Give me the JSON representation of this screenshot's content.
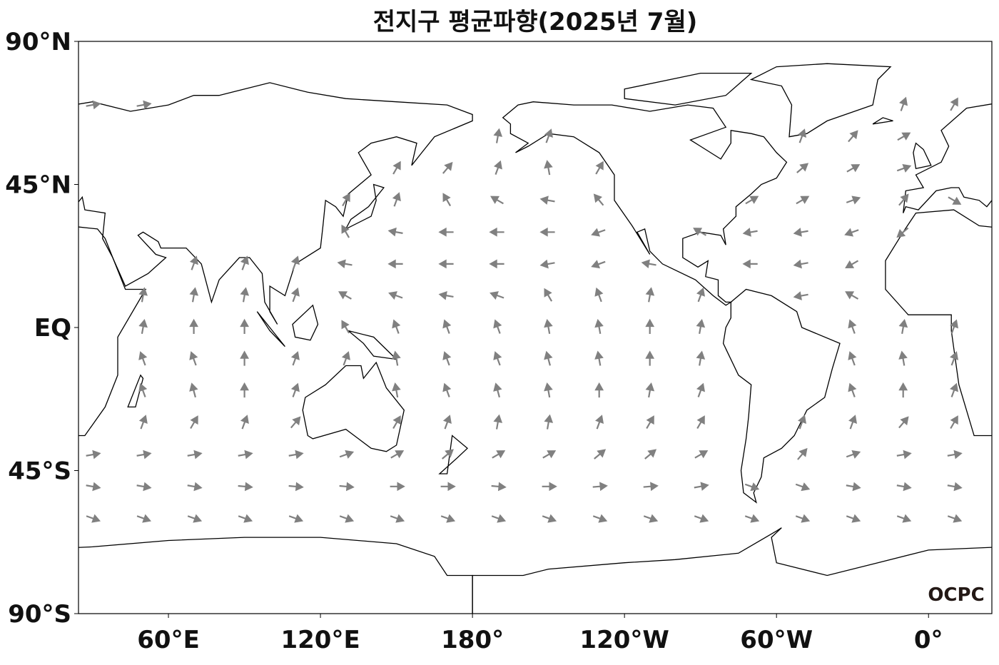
{
  "title": "전지구 평균파향(2025년 7월)",
  "logo": "OCPC",
  "map": {
    "lon_range": [
      24.5,
      385
    ],
    "lat_range": [
      -90,
      90
    ],
    "lat_ticks": [
      {
        "value": 90,
        "label": "90°N"
      },
      {
        "value": 45,
        "label": "45°N"
      },
      {
        "value": 0,
        "label": "EQ"
      },
      {
        "value": -45,
        "label": "45°S"
      },
      {
        "value": -90,
        "label": "90°S"
      }
    ],
    "lon_ticks": [
      {
        "value": 60,
        "label": "60°E"
      },
      {
        "value": 120,
        "label": "120°E"
      },
      {
        "value": 180,
        "label": "180°"
      },
      {
        "value": 240,
        "label": "120°W"
      },
      {
        "value": 300,
        "label": "60°W"
      },
      {
        "value": 360,
        "label": "0°"
      }
    ]
  },
  "wave_direction": {
    "color": "#808080",
    "lats": [
      70,
      60,
      50,
      40,
      30,
      20,
      10,
      0,
      -10,
      -20,
      -30,
      -40,
      -50,
      -60
    ],
    "lons": [
      30,
      50,
      70,
      90,
      110,
      130,
      150,
      170,
      190,
      210,
      230,
      250,
      270,
      290,
      310,
      330,
      350,
      370
    ],
    "directions": [
      [
        80,
        80,
        null,
        null,
        null,
        null,
        null,
        null,
        null,
        null,
        null,
        null,
        null,
        null,
        null,
        null,
        20,
        30
      ],
      [
        null,
        null,
        null,
        null,
        null,
        null,
        null,
        null,
        10,
        20,
        null,
        null,
        null,
        null,
        20,
        40,
        60,
        null
      ],
      [
        null,
        null,
        null,
        null,
        null,
        null,
        30,
        40,
        20,
        350,
        30,
        null,
        null,
        null,
        50,
        60,
        70,
        null
      ],
      [
        null,
        null,
        null,
        null,
        null,
        30,
        20,
        330,
        300,
        280,
        320,
        null,
        null,
        60,
        60,
        70,
        40,
        120
      ],
      [
        null,
        null,
        null,
        null,
        null,
        330,
        280,
        270,
        270,
        270,
        250,
        null,
        300,
        260,
        260,
        250,
        230,
        null
      ],
      [
        null,
        null,
        20,
        20,
        20,
        280,
        270,
        270,
        270,
        260,
        250,
        280,
        null,
        270,
        260,
        240,
        null,
        null
      ],
      [
        null,
        10,
        10,
        10,
        20,
        300,
        290,
        280,
        290,
        330,
        340,
        10,
        20,
        null,
        260,
        300,
        null,
        null
      ],
      [
        null,
        10,
        0,
        0,
        null,
        330,
        340,
        340,
        340,
        350,
        350,
        0,
        10,
        null,
        null,
        340,
        10,
        20
      ],
      [
        null,
        340,
        340,
        0,
        20,
        20,
        350,
        340,
        340,
        345,
        350,
        0,
        10,
        null,
        null,
        340,
        350,
        20
      ],
      [
        null,
        340,
        345,
        0,
        20,
        null,
        350,
        340,
        345,
        350,
        0,
        10,
        20,
        null,
        null,
        340,
        0,
        20
      ],
      [
        null,
        20,
        30,
        20,
        40,
        null,
        30,
        20,
        10,
        10,
        20,
        30,
        30,
        null,
        20,
        20,
        40,
        30
      ],
      [
        80,
        80,
        80,
        80,
        80,
        70,
        60,
        50,
        60,
        60,
        50,
        50,
        60,
        null,
        40,
        70,
        80,
        80
      ],
      [
        100,
        100,
        100,
        95,
        95,
        95,
        90,
        90,
        95,
        90,
        85,
        85,
        80,
        110,
        110,
        100,
        100,
        100
      ],
      [
        110,
        110,
        110,
        110,
        110,
        110,
        110,
        110,
        110,
        110,
        110,
        110,
        110,
        110,
        110,
        110,
        110,
        110
      ]
    ]
  }
}
